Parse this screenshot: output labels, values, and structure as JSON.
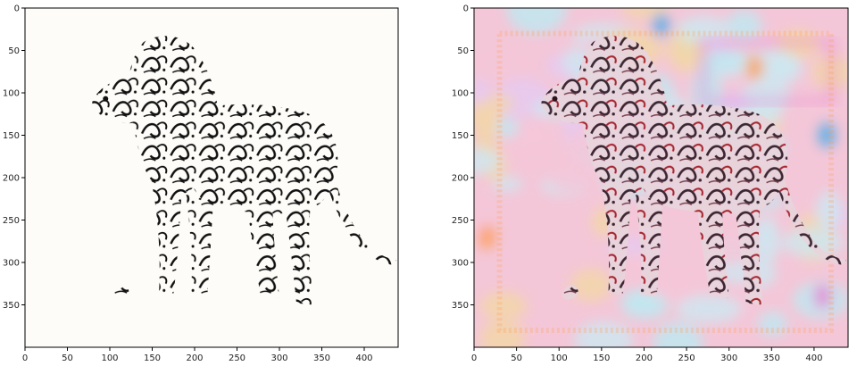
{
  "chart_data": [
    {
      "type": "image",
      "title": "",
      "xlabel": "",
      "ylabel": "",
      "xlim": [
        0,
        440
      ],
      "ylim": [
        400,
        0
      ],
      "xticks": [
        0,
        50,
        100,
        150,
        200,
        250,
        300,
        350,
        400
      ],
      "yticks": [
        0,
        50,
        100,
        150,
        200,
        250,
        300,
        350
      ],
      "image": {
        "subject": "lion made of black calligraphy strokes",
        "background_color": "#fdfcf8",
        "ink_color": "#111111"
      }
    },
    {
      "type": "image",
      "title": "",
      "xlabel": "",
      "ylabel": "",
      "xlim": [
        0,
        440
      ],
      "ylim": [
        400,
        0
      ],
      "xticks": [
        0,
        50,
        100,
        150,
        200,
        250,
        300,
        350,
        400
      ],
      "yticks": [
        0,
        50,
        100,
        150,
        200,
        250,
        300,
        350
      ],
      "image": {
        "subject": "stylized lion over pastel texture",
        "background_colors": [
          "#f4c7d8",
          "#cfe6f0",
          "#f2d6a8",
          "#e6c9f0",
          "#bfe8f0"
        ],
        "ink_colors": [
          "#2a1420",
          "#a0141e"
        ],
        "accent_colors": [
          "#3aa8e8",
          "#ff9a4a",
          "#e87ad0"
        ]
      }
    }
  ]
}
